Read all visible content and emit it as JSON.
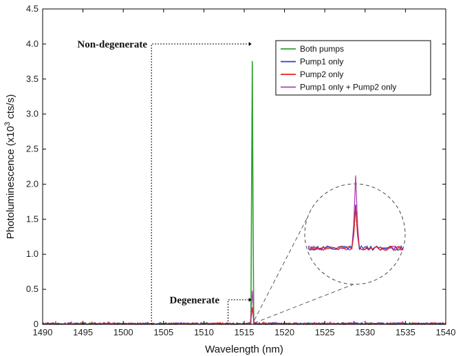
{
  "chart_data": {
    "type": "line",
    "title": "",
    "xlabel": "Wavelength (nm)",
    "ylabel_main": "Photoluminescence (x10",
    "ylabel_sup": "3",
    "ylabel_tail": " cts/s)",
    "xlim": [
      1490,
      1540
    ],
    "ylim": [
      0,
      4.5
    ],
    "xticks": [
      1490,
      1495,
      1500,
      1505,
      1510,
      1515,
      1520,
      1525,
      1530,
      1535,
      1540
    ],
    "yticks": [
      0,
      0.5,
      1.0,
      1.5,
      2.0,
      2.5,
      3.0,
      3.5,
      4.0,
      4.5
    ],
    "ytick_labels": [
      "0",
      "0.5",
      "1.0",
      "1.5",
      "2.0",
      "2.5",
      "3.0",
      "3.5",
      "4.0",
      "4.5"
    ],
    "grid": false,
    "legend_position": "top-right",
    "series": [
      {
        "name": "Both pumps",
        "color": "#2ca02c",
        "peak_x": 1516,
        "peak_y": 4.0
      },
      {
        "name": "Pump1 only",
        "color": "#2b3fbf",
        "peak_x": 1516,
        "peak_y": 0.25
      },
      {
        "name": "Pump2 only",
        "color": "#e02020",
        "peak_x": 1516,
        "peak_y": 0.25
      },
      {
        "name": "Pump1 only + Pump2 only",
        "color": "#b03fb0",
        "peak_x": 1516,
        "peak_y": 0.5
      }
    ],
    "annotations": [
      {
        "text": "Non-degenerate",
        "x": 1503.5,
        "y": 4.0
      },
      {
        "text": "Degenerate",
        "x": 1513,
        "y": 0.35
      }
    ]
  }
}
